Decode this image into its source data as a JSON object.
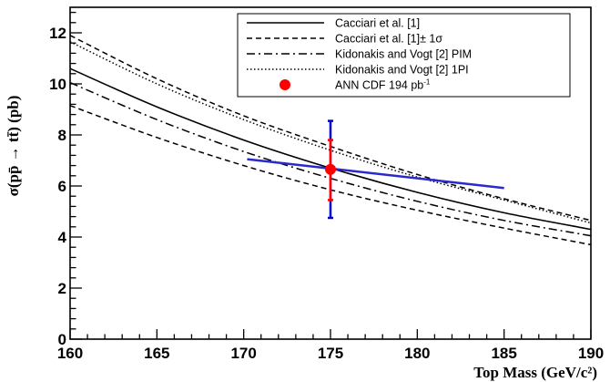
{
  "chart_data": {
    "type": "line",
    "xlabel": "Top Mass (GeV/c²)",
    "ylabel": "σ(pp̄ → tt̄) (pb)",
    "xlim": [
      160,
      190
    ],
    "ylim": [
      0,
      13
    ],
    "xticks": [
      160,
      165,
      170,
      175,
      180,
      185,
      190
    ],
    "yticks": [
      0,
      2,
      4,
      6,
      8,
      10,
      12
    ],
    "legend_position": "top-right",
    "grid": false,
    "series": [
      {
        "name": "Cacciari et al. [1]",
        "style": "solid",
        "x": [
          160,
          165,
          170,
          175,
          180,
          185,
          190
        ],
        "y": [
          10.6,
          9.1,
          7.8,
          6.7,
          5.75,
          4.95,
          4.3
        ]
      },
      {
        "name": "Cacciari et al. [1]± 1σ",
        "style": "dashed",
        "x": [
          160,
          165,
          170,
          175,
          180,
          185,
          190
        ],
        "y": [
          11.9,
          10.2,
          8.75,
          7.55,
          6.45,
          5.5,
          4.65
        ]
      },
      {
        "name": "",
        "style": "dashed",
        "x": [
          160,
          165,
          170,
          175,
          180,
          185,
          190
        ],
        "y": [
          9.15,
          7.9,
          6.8,
          5.85,
          5.05,
          4.35,
          3.7
        ]
      },
      {
        "name": "Kidonakis and Vogt [2] PIM",
        "style": "dashdot",
        "x": [
          160,
          165,
          170,
          175,
          180,
          185,
          190
        ],
        "y": [
          10.05,
          8.6,
          7.35,
          6.3,
          5.4,
          4.65,
          4.05
        ]
      },
      {
        "name": "Kidonakis and Vogt [2] 1PI",
        "style": "dotted",
        "x": [
          160,
          165,
          170,
          175,
          180,
          185,
          190
        ],
        "y": [
          11.65,
          10.0,
          8.6,
          7.4,
          6.35,
          5.45,
          4.55
        ]
      }
    ],
    "measurement": {
      "name": "ANN CDF 194 pb",
      "name_sup": "-1",
      "x": 175,
      "y": 6.65,
      "stat_err": [
        5.45,
        7.8
      ],
      "total_err": [
        4.75,
        8.55
      ],
      "color": "#ff0000",
      "err_color": "#0000cc"
    },
    "dependence_line": {
      "color": "#2a2acc",
      "x": [
        170.2,
        185
      ],
      "y": [
        7.05,
        5.92
      ]
    }
  }
}
